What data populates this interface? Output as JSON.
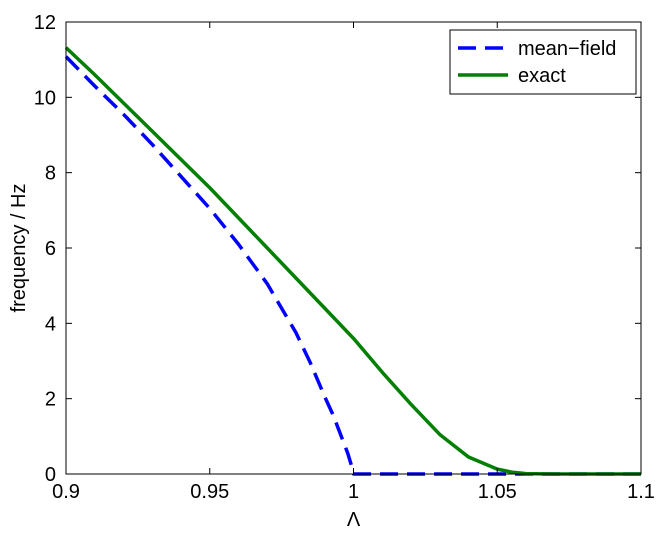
{
  "chart_data": {
    "type": "line",
    "title": "",
    "xlabel": "Λ",
    "ylabel": "frequency / Hz",
    "xlim": [
      0.9,
      1.1
    ],
    "ylim": [
      0,
      12
    ],
    "grid": false,
    "legend_position": "top-right",
    "x_ticks": [
      0.9,
      0.95,
      1,
      1.05,
      1.1
    ],
    "x_tick_labels": [
      "0.9",
      "0.95",
      "1",
      "1.05",
      "1.1"
    ],
    "y_ticks": [
      0,
      2,
      4,
      6,
      8,
      10,
      12
    ],
    "y_tick_labels": [
      "0",
      "2",
      "4",
      "6",
      "8",
      "10",
      "12"
    ],
    "series": [
      {
        "name": "mean−field",
        "color": "#0000ff",
        "style": "dashed",
        "x": [
          0.9,
          0.91,
          0.92,
          0.93,
          0.94,
          0.95,
          0.96,
          0.97,
          0.98,
          0.985,
          0.99,
          0.993,
          0.996,
          0.998,
          0.999,
          1.0,
          1.01,
          1.02,
          1.03,
          1.04,
          1.05,
          1.06,
          1.08,
          1.1
        ],
        "y": [
          11.08,
          10.3,
          9.55,
          8.75,
          7.9,
          7.05,
          6.1,
          5.05,
          3.75,
          2.95,
          2.05,
          1.55,
          0.95,
          0.55,
          0.3,
          0.0,
          0.0,
          0.0,
          0.0,
          0.0,
          0.0,
          0.0,
          0.0,
          0.0
        ]
      },
      {
        "name": "exact",
        "color": "#007f00",
        "style": "solid",
        "x": [
          0.9,
          0.91,
          0.92,
          0.93,
          0.94,
          0.95,
          0.96,
          0.97,
          0.98,
          0.99,
          1.0,
          1.01,
          1.02,
          1.03,
          1.04,
          1.05,
          1.055,
          1.06,
          1.07,
          1.08,
          1.09,
          1.1
        ],
        "y": [
          11.32,
          10.6,
          9.85,
          9.1,
          8.35,
          7.6,
          6.8,
          6.0,
          5.2,
          4.4,
          3.6,
          2.7,
          1.85,
          1.05,
          0.45,
          0.13,
          0.05,
          0.01,
          0.0,
          0.0,
          0.0,
          0.0
        ]
      }
    ]
  }
}
